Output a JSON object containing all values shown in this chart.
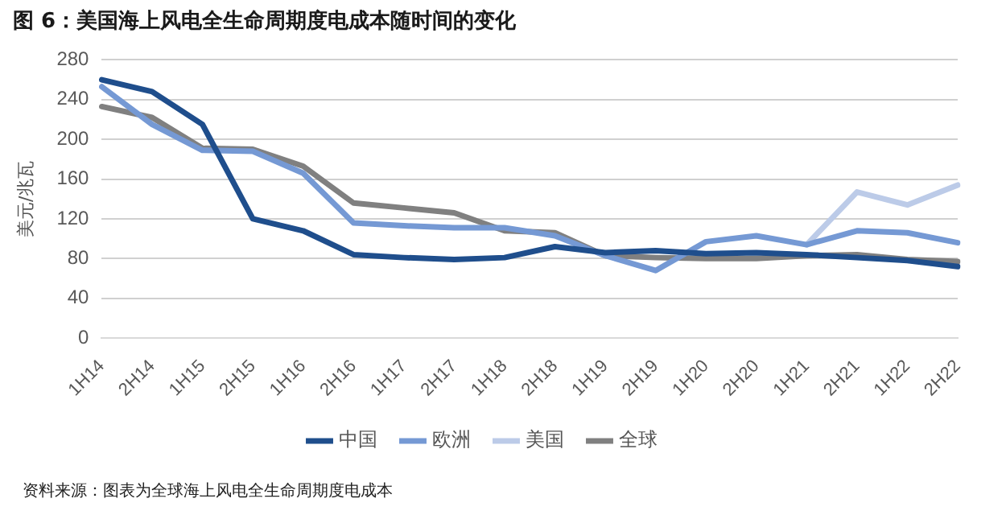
{
  "chart_data": {
    "type": "line",
    "title": "图 6：美国海上风电全生命周期度电成本随时间的变化",
    "ylabel": "美元/兆瓦",
    "categories": [
      "1H14",
      "2H14",
      "1H15",
      "2H15",
      "1H16",
      "2H16",
      "1H17",
      "2H17",
      "1H18",
      "2H18",
      "1H19",
      "2H19",
      "1H20",
      "2H20",
      "1H21",
      "2H21",
      "1H22",
      "2H22"
    ],
    "series": [
      {
        "name": "中国",
        "color": "#1f4e8c",
        "values": [
          260,
          248,
          215,
          120,
          108,
          84,
          81,
          79,
          81,
          92,
          86,
          88,
          85,
          86,
          84,
          81,
          78,
          72
        ]
      },
      {
        "name": "欧洲",
        "color": "#7599d4",
        "values": [
          253,
          215,
          189,
          188,
          166,
          116,
          113,
          111,
          111,
          103,
          83,
          68,
          97,
          103,
          94,
          108,
          106,
          96
        ]
      },
      {
        "name": "美国",
        "color": "#bccbe8",
        "values": [
          null,
          null,
          null,
          null,
          null,
          null,
          null,
          null,
          null,
          null,
          null,
          null,
          null,
          null,
          94,
          147,
          134,
          154
        ]
      },
      {
        "name": "全球",
        "color": "#808080",
        "values": [
          233,
          222,
          191,
          190,
          173,
          136,
          131,
          126,
          108,
          106,
          83,
          81,
          80,
          80,
          83,
          84,
          79,
          77
        ]
      }
    ],
    "ylim": [
      0,
      280
    ],
    "yticks": [
      0,
      40,
      80,
      120,
      160,
      200,
      240,
      280
    ],
    "grid": "y",
    "legend": "bottom",
    "marker": "none",
    "line_style": "solid",
    "annotations": [
      "资料来源：图表为全球海上风电全生命周期度电成本"
    ]
  }
}
